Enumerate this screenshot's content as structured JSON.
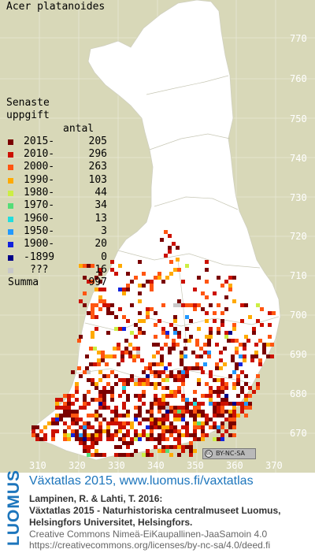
{
  "map": {
    "species": "Acer platanoides",
    "background_color": "#d8d8b8",
    "land_color": "#ffffff",
    "legend": {
      "title_line1": "Senaste",
      "title_line2": "uppgift",
      "count_header": "antal",
      "entries": [
        {
          "label": "2015-",
          "count": "205",
          "color": "#7a0000"
        },
        {
          "label": "2010-",
          "count": "296",
          "color": "#cc1100"
        },
        {
          "label": "2000-",
          "count": "263",
          "color": "#ff5511"
        },
        {
          "label": "1990-",
          "count": "103",
          "color": "#ffaa00"
        },
        {
          "label": "1980-",
          "count": "44",
          "color": "#ccee44"
        },
        {
          "label": "1970-",
          "count": "34",
          "color": "#55dd77"
        },
        {
          "label": "1960-",
          "count": "13",
          "color": "#22dddd"
        },
        {
          "label": "1950-",
          "count": "3",
          "color": "#2299ff"
        },
        {
          "label": "1900-",
          "count": "20",
          "color": "#1122dd"
        },
        {
          "label": "-1899",
          "count": "0",
          "color": "#000088"
        },
        {
          "label": "???",
          "count": "16",
          "color": "#c8c8c8"
        }
      ],
      "sum_label": "Summa",
      "sum_count": "997"
    },
    "y_axis_labels": [
      "770",
      "760",
      "750",
      "740",
      "730",
      "720",
      "710",
      "700",
      "690",
      "680",
      "670"
    ],
    "x_axis_labels": [
      "310",
      "320",
      "330",
      "340",
      "350",
      "360",
      "370"
    ],
    "license_badge": "BY-NC-SA",
    "license_badge_mark": "cc"
  },
  "footer": {
    "logo_text": "LUOMUS",
    "title": "Växtatlas 2015, www.luomus.fi/vaxtatlas",
    "citation_line1": "Lampinen, R. & Lahti, T. 2016:",
    "citation_line2": "Växtatlas 2015 - Naturhistoriska centralmuseet Luomus,",
    "citation_line3": "Helsingfors Universitet, Helsingfors.",
    "license_line1": "Creative Commons Nimeä-EiKaupallinen-JaaSamoin 4.0",
    "license_line2": "https://creativecommons.org/licenses/by-nc-sa/4.0/deed.fi",
    "brand_color": "#1c75bc"
  }
}
